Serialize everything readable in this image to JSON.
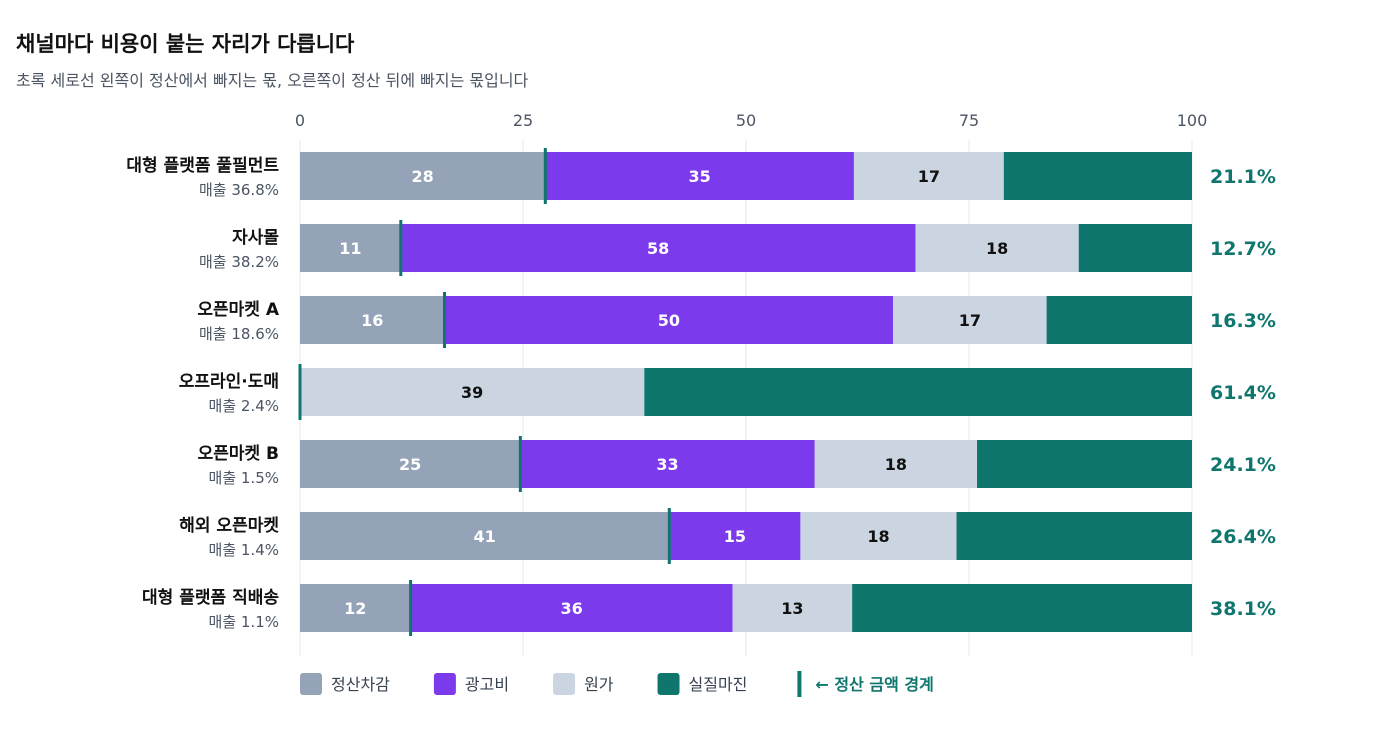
{
  "title": "채널마다 비용이 붙는 자리가 다릅니다",
  "subtitle": "초록 세로선 왼쪽이 정산에서 빠지는 몫, 오른쪽이 정산 뒤에 빠지는 몫입니다",
  "chart_data": {
    "type": "bar",
    "orientation": "horizontal",
    "stacked": true,
    "xlim": [
      0,
      100
    ],
    "x_ticks": [
      "0",
      "25",
      "50",
      "75",
      "100"
    ],
    "grid": true,
    "legend_position": "bottom",
    "categories": [
      "대형 플랫폼 풀필먼트",
      "자사몰",
      "오픈마켓 A",
      "오프라인·도매",
      "오픈마켓 B",
      "해외 오픈마켓",
      "대형 플랫폼 직배송"
    ],
    "revenue_labels": [
      "매출 36.8%",
      "매출 38.2%",
      "매출 18.6%",
      "매출 2.4%",
      "매출 1.5%",
      "매출 1.4%",
      "매출 1.1%"
    ],
    "series": [
      {
        "name": "정산차감",
        "color": "#94a3b8",
        "values": [
          27.5,
          11.3,
          16.2,
          0,
          24.7,
          41.4,
          12.4
        ],
        "labels": [
          "28",
          "11",
          "16",
          "",
          "25",
          "41",
          "12"
        ]
      },
      {
        "name": "광고비",
        "color": "#7c3aed",
        "values": [
          34.6,
          57.7,
          50.3,
          0,
          33.0,
          14.7,
          36.1
        ],
        "labels": [
          "35",
          "58",
          "50",
          "",
          "33",
          "15",
          "36"
        ]
      },
      {
        "name": "원가",
        "color": "#cbd5e1",
        "values": [
          16.8,
          18.3,
          17.2,
          38.6,
          18.2,
          17.5,
          13.4
        ],
        "labels": [
          "17",
          "18",
          "17",
          "39",
          "18",
          "18",
          "13"
        ]
      },
      {
        "name": "실질마진",
        "color": "#0f766e",
        "values": [
          21.1,
          12.7,
          16.3,
          61.4,
          24.1,
          26.4,
          38.1
        ],
        "labels": [
          "",
          "",
          "",
          "",
          "",
          "",
          ""
        ]
      }
    ],
    "settlement_boundary": [
      27.5,
      11.3,
      16.2,
      0,
      24.7,
      41.4,
      12.4
    ],
    "margin_labels": [
      "21.1%",
      "12.7%",
      "16.3%",
      "61.4%",
      "24.1%",
      "26.4%",
      "38.1%"
    ],
    "boundary_legend": "← 정산 금액 경계",
    "colors": {
      "boundary": "#0f766e",
      "grid": "#e5e7eb",
      "dark_text": "#111111",
      "light_text": "#ffffff"
    }
  }
}
